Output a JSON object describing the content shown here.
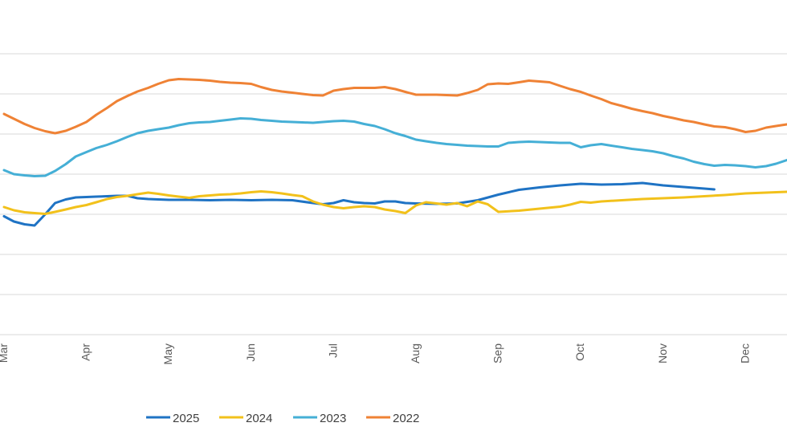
{
  "chart_data": {
    "type": "line",
    "x": [
      "Mar",
      "Apr",
      "May",
      "Jun",
      "Jul",
      "Aug",
      "Sep",
      "Oct",
      "Nov",
      "Dec"
    ],
    "ylim": [
      0,
      7
    ],
    "grid": "horizontal",
    "legend_position": "bottom",
    "series": [
      {
        "name": "2025",
        "color": "#1f73c4",
        "points": [
          [
            0.0,
            2.95
          ],
          [
            0.12,
            2.82
          ],
          [
            0.25,
            2.75
          ],
          [
            0.37,
            2.72
          ],
          [
            0.5,
            3.0
          ],
          [
            0.62,
            3.28
          ],
          [
            0.75,
            3.37
          ],
          [
            0.87,
            3.42
          ],
          [
            1.0,
            3.43
          ],
          [
            1.12,
            3.44
          ],
          [
            1.25,
            3.45
          ],
          [
            1.37,
            3.46
          ],
          [
            1.5,
            3.46
          ],
          [
            1.62,
            3.4
          ],
          [
            1.75,
            3.38
          ],
          [
            1.87,
            3.37
          ],
          [
            2.0,
            3.36
          ],
          [
            2.25,
            3.36
          ],
          [
            2.5,
            3.35
          ],
          [
            2.75,
            3.36
          ],
          [
            3.0,
            3.35
          ],
          [
            3.25,
            3.36
          ],
          [
            3.5,
            3.35
          ],
          [
            3.75,
            3.28
          ],
          [
            3.87,
            3.25
          ],
          [
            4.0,
            3.28
          ],
          [
            4.12,
            3.35
          ],
          [
            4.25,
            3.3
          ],
          [
            4.37,
            3.28
          ],
          [
            4.5,
            3.27
          ],
          [
            4.62,
            3.32
          ],
          [
            4.75,
            3.32
          ],
          [
            4.87,
            3.28
          ],
          [
            5.0,
            3.27
          ],
          [
            5.25,
            3.26
          ],
          [
            5.5,
            3.27
          ],
          [
            5.75,
            3.35
          ],
          [
            6.0,
            3.49
          ],
          [
            6.25,
            3.61
          ],
          [
            6.5,
            3.67
          ],
          [
            6.75,
            3.72
          ],
          [
            7.0,
            3.76
          ],
          [
            7.25,
            3.74
          ],
          [
            7.5,
            3.75
          ],
          [
            7.75,
            3.78
          ],
          [
            8.0,
            3.72
          ],
          [
            8.25,
            3.68
          ],
          [
            8.5,
            3.64
          ],
          [
            8.62,
            3.62
          ]
        ]
      },
      {
        "name": "2024",
        "color": "#f2c11b",
        "points": [
          [
            0.0,
            3.18
          ],
          [
            0.12,
            3.1
          ],
          [
            0.25,
            3.05
          ],
          [
            0.37,
            3.03
          ],
          [
            0.5,
            3.01
          ],
          [
            0.62,
            3.06
          ],
          [
            0.75,
            3.12
          ],
          [
            0.87,
            3.18
          ],
          [
            1.0,
            3.23
          ],
          [
            1.12,
            3.3
          ],
          [
            1.25,
            3.38
          ],
          [
            1.37,
            3.43
          ],
          [
            1.5,
            3.46
          ],
          [
            1.62,
            3.5
          ],
          [
            1.75,
            3.54
          ],
          [
            1.87,
            3.51
          ],
          [
            2.0,
            3.47
          ],
          [
            2.12,
            3.44
          ],
          [
            2.25,
            3.41
          ],
          [
            2.37,
            3.45
          ],
          [
            2.5,
            3.47
          ],
          [
            2.62,
            3.49
          ],
          [
            2.75,
            3.5
          ],
          [
            2.87,
            3.52
          ],
          [
            3.0,
            3.55
          ],
          [
            3.12,
            3.57
          ],
          [
            3.25,
            3.55
          ],
          [
            3.37,
            3.52
          ],
          [
            3.5,
            3.48
          ],
          [
            3.62,
            3.45
          ],
          [
            3.75,
            3.32
          ],
          [
            3.87,
            3.24
          ],
          [
            4.0,
            3.18
          ],
          [
            4.12,
            3.15
          ],
          [
            4.25,
            3.18
          ],
          [
            4.37,
            3.2
          ],
          [
            4.5,
            3.18
          ],
          [
            4.62,
            3.12
          ],
          [
            4.75,
            3.08
          ],
          [
            4.87,
            3.03
          ],
          [
            5.0,
            3.22
          ],
          [
            5.12,
            3.3
          ],
          [
            5.25,
            3.27
          ],
          [
            5.37,
            3.24
          ],
          [
            5.5,
            3.28
          ],
          [
            5.62,
            3.2
          ],
          [
            5.75,
            3.32
          ],
          [
            5.87,
            3.25
          ],
          [
            6.0,
            3.06
          ],
          [
            6.25,
            3.09
          ],
          [
            6.5,
            3.14
          ],
          [
            6.75,
            3.19
          ],
          [
            6.87,
            3.24
          ],
          [
            7.0,
            3.31
          ],
          [
            7.12,
            3.29
          ],
          [
            7.25,
            3.32
          ],
          [
            7.5,
            3.35
          ],
          [
            7.75,
            3.38
          ],
          [
            8.0,
            3.4
          ],
          [
            8.25,
            3.42
          ],
          [
            8.5,
            3.45
          ],
          [
            8.75,
            3.48
          ],
          [
            9.0,
            3.52
          ],
          [
            9.25,
            3.54
          ],
          [
            9.5,
            3.56
          ],
          [
            9.75,
            3.58
          ],
          [
            9.85,
            3.59
          ]
        ]
      },
      {
        "name": "2023",
        "color": "#45afd6",
        "points": [
          [
            0.0,
            4.1
          ],
          [
            0.12,
            4.0
          ],
          [
            0.25,
            3.97
          ],
          [
            0.37,
            3.95
          ],
          [
            0.5,
            3.96
          ],
          [
            0.62,
            4.08
          ],
          [
            0.75,
            4.25
          ],
          [
            0.87,
            4.44
          ],
          [
            1.0,
            4.55
          ],
          [
            1.12,
            4.65
          ],
          [
            1.25,
            4.73
          ],
          [
            1.37,
            4.82
          ],
          [
            1.5,
            4.93
          ],
          [
            1.62,
            5.02
          ],
          [
            1.75,
            5.08
          ],
          [
            1.87,
            5.12
          ],
          [
            2.0,
            5.16
          ],
          [
            2.12,
            5.22
          ],
          [
            2.25,
            5.27
          ],
          [
            2.37,
            5.29
          ],
          [
            2.5,
            5.3
          ],
          [
            2.62,
            5.33
          ],
          [
            2.75,
            5.36
          ],
          [
            2.87,
            5.39
          ],
          [
            3.0,
            5.38
          ],
          [
            3.12,
            5.35
          ],
          [
            3.25,
            5.33
          ],
          [
            3.37,
            5.31
          ],
          [
            3.5,
            5.3
          ],
          [
            3.62,
            5.29
          ],
          [
            3.75,
            5.28
          ],
          [
            3.87,
            5.3
          ],
          [
            4.0,
            5.32
          ],
          [
            4.12,
            5.33
          ],
          [
            4.25,
            5.31
          ],
          [
            4.37,
            5.25
          ],
          [
            4.5,
            5.2
          ],
          [
            4.62,
            5.12
          ],
          [
            4.75,
            5.02
          ],
          [
            4.87,
            4.95
          ],
          [
            5.0,
            4.86
          ],
          [
            5.12,
            4.82
          ],
          [
            5.25,
            4.78
          ],
          [
            5.37,
            4.75
          ],
          [
            5.5,
            4.73
          ],
          [
            5.62,
            4.71
          ],
          [
            5.75,
            4.7
          ],
          [
            5.87,
            4.69
          ],
          [
            6.0,
            4.69
          ],
          [
            6.12,
            4.78
          ],
          [
            6.25,
            4.8
          ],
          [
            6.37,
            4.81
          ],
          [
            6.5,
            4.8
          ],
          [
            6.62,
            4.79
          ],
          [
            6.75,
            4.78
          ],
          [
            6.87,
            4.78
          ],
          [
            7.0,
            4.67
          ],
          [
            7.12,
            4.72
          ],
          [
            7.25,
            4.75
          ],
          [
            7.37,
            4.71
          ],
          [
            7.5,
            4.67
          ],
          [
            7.62,
            4.63
          ],
          [
            7.75,
            4.6
          ],
          [
            7.87,
            4.57
          ],
          [
            8.0,
            4.52
          ],
          [
            8.12,
            4.45
          ],
          [
            8.25,
            4.39
          ],
          [
            8.37,
            4.31
          ],
          [
            8.5,
            4.25
          ],
          [
            8.62,
            4.21
          ],
          [
            8.75,
            4.23
          ],
          [
            8.87,
            4.22
          ],
          [
            9.0,
            4.2
          ],
          [
            9.12,
            4.17
          ],
          [
            9.25,
            4.2
          ],
          [
            9.37,
            4.26
          ],
          [
            9.5,
            4.35
          ],
          [
            9.62,
            4.43
          ],
          [
            9.75,
            4.52
          ],
          [
            9.85,
            4.58
          ]
        ]
      },
      {
        "name": "2022",
        "color": "#ef8235",
        "points": [
          [
            0.0,
            5.5
          ],
          [
            0.12,
            5.38
          ],
          [
            0.25,
            5.25
          ],
          [
            0.37,
            5.15
          ],
          [
            0.5,
            5.07
          ],
          [
            0.62,
            5.02
          ],
          [
            0.75,
            5.08
          ],
          [
            0.87,
            5.18
          ],
          [
            1.0,
            5.3
          ],
          [
            1.12,
            5.48
          ],
          [
            1.25,
            5.65
          ],
          [
            1.37,
            5.82
          ],
          [
            1.5,
            5.95
          ],
          [
            1.62,
            6.06
          ],
          [
            1.75,
            6.15
          ],
          [
            1.87,
            6.25
          ],
          [
            2.0,
            6.34
          ],
          [
            2.12,
            6.37
          ],
          [
            2.25,
            6.36
          ],
          [
            2.37,
            6.35
          ],
          [
            2.5,
            6.33
          ],
          [
            2.62,
            6.3
          ],
          [
            2.75,
            6.28
          ],
          [
            2.87,
            6.27
          ],
          [
            3.0,
            6.25
          ],
          [
            3.12,
            6.17
          ],
          [
            3.25,
            6.1
          ],
          [
            3.37,
            6.06
          ],
          [
            3.5,
            6.03
          ],
          [
            3.62,
            6.0
          ],
          [
            3.75,
            5.97
          ],
          [
            3.87,
            5.96
          ],
          [
            4.0,
            6.08
          ],
          [
            4.12,
            6.12
          ],
          [
            4.25,
            6.15
          ],
          [
            4.37,
            6.15
          ],
          [
            4.5,
            6.15
          ],
          [
            4.62,
            6.17
          ],
          [
            4.75,
            6.12
          ],
          [
            4.87,
            6.05
          ],
          [
            5.0,
            5.98
          ],
          [
            5.12,
            5.98
          ],
          [
            5.25,
            5.98
          ],
          [
            5.37,
            5.97
          ],
          [
            5.5,
            5.96
          ],
          [
            5.62,
            6.02
          ],
          [
            5.75,
            6.1
          ],
          [
            5.87,
            6.24
          ],
          [
            6.0,
            6.26
          ],
          [
            6.12,
            6.25
          ],
          [
            6.25,
            6.29
          ],
          [
            6.37,
            6.33
          ],
          [
            6.5,
            6.31
          ],
          [
            6.62,
            6.29
          ],
          [
            6.75,
            6.2
          ],
          [
            6.87,
            6.12
          ],
          [
            7.0,
            6.05
          ],
          [
            7.12,
            5.96
          ],
          [
            7.25,
            5.87
          ],
          [
            7.37,
            5.77
          ],
          [
            7.5,
            5.7
          ],
          [
            7.62,
            5.63
          ],
          [
            7.75,
            5.57
          ],
          [
            7.87,
            5.52
          ],
          [
            8.0,
            5.45
          ],
          [
            8.12,
            5.4
          ],
          [
            8.25,
            5.34
          ],
          [
            8.37,
            5.3
          ],
          [
            8.5,
            5.24
          ],
          [
            8.62,
            5.19
          ],
          [
            8.75,
            5.17
          ],
          [
            8.87,
            5.12
          ],
          [
            9.0,
            5.05
          ],
          [
            9.12,
            5.08
          ],
          [
            9.25,
            5.16
          ],
          [
            9.37,
            5.2
          ],
          [
            9.5,
            5.24
          ],
          [
            9.62,
            5.27
          ],
          [
            9.75,
            5.32
          ],
          [
            9.85,
            5.36
          ]
        ]
      }
    ]
  }
}
